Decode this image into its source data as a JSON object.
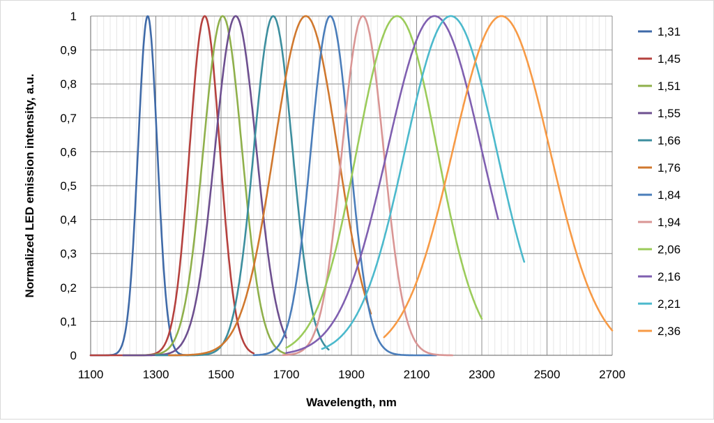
{
  "chart_data": {
    "type": "line",
    "title": "",
    "xlabel": "Wavelength, nm",
    "ylabel": "Normalized LED emission intensity, a.u.",
    "xlim": [
      1100,
      2700
    ],
    "ylim": [
      0,
      1
    ],
    "x_ticks": [
      "1100",
      "1300",
      "1500",
      "1700",
      "1900",
      "2100",
      "2300",
      "2500",
      "2700"
    ],
    "y_ticks": [
      "0",
      "0,1",
      "0,2",
      "0,3",
      "0,4",
      "0,5",
      "0,6",
      "0,7",
      "0,8",
      "0,9",
      "1"
    ],
    "grid": true,
    "legend_position": "right",
    "series": [
      {
        "name": "1,31",
        "color": "#4472C4",
        "peak": 1275,
        "fwhm": 70,
        "range": [
          1100,
          1400
        ],
        "line": "#3F6AA8"
      },
      {
        "name": "1,45",
        "color": "#C0504D",
        "peak": 1450,
        "fwhm": 110,
        "range": [
          1100,
          1600
        ],
        "line": "#B5413E"
      },
      {
        "name": "1,51",
        "color": "#9BBB59",
        "peak": 1505,
        "fwhm": 140,
        "range": [
          1200,
          1700
        ],
        "line": "#8FB04B"
      },
      {
        "name": "1,55",
        "color": "#8064A2",
        "peak": 1545,
        "fwhm": 150,
        "range": [
          1200,
          1700
        ],
        "line": "#6D4F8F"
      },
      {
        "name": "1,66",
        "color": "#4BACC6",
        "peak": 1660,
        "fwhm": 140,
        "range": [
          1300,
          1830
        ],
        "line": "#3C8E9E"
      },
      {
        "name": "1,76",
        "color": "#F79646",
        "peak": 1760,
        "fwhm": 230,
        "range": [
          1340,
          1960
        ],
        "line": "#D0782E"
      },
      {
        "name": "1,84",
        "color": "#4F81BD",
        "peak": 1835,
        "fwhm": 140,
        "range": [
          1600,
          2160
        ],
        "line": "#4A7DBA"
      },
      {
        "name": "1,94",
        "color": "#E6A0A0",
        "peak": 1935,
        "fwhm": 150,
        "range": [
          1690,
          2210
        ],
        "line": "#D99594"
      },
      {
        "name": "2,06",
        "color": "#9BBB59",
        "peak": 2040,
        "fwhm": 290,
        "range": [
          1700,
          2300
        ],
        "line": "#9BCB5A"
      },
      {
        "name": "2,16",
        "color": "#8064A2",
        "peak": 2155,
        "fwhm": 340,
        "range": [
          1700,
          2350
        ],
        "line": "#7F5FB0"
      },
      {
        "name": "2,21",
        "color": "#4BACC6",
        "peak": 2205,
        "fwhm": 330,
        "range": [
          1810,
          2430
        ],
        "line": "#4BB9CC"
      },
      {
        "name": "2,36",
        "color": "#F79646",
        "peak": 2360,
        "fwhm": 350,
        "range": [
          2000,
          2700
        ],
        "line": "#F79A45"
      }
    ]
  }
}
